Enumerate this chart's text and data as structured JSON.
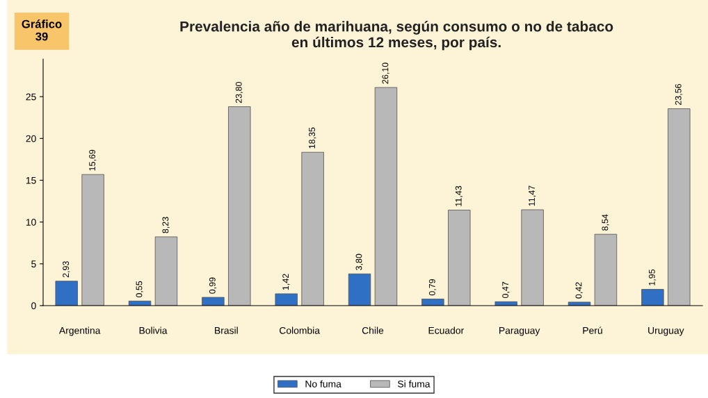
{
  "chart_data": {
    "type": "bar",
    "title": "Prevalencia año de marihuana, según consumo o no de tabaco\nen últimos 12 meses, por país.",
    "annotations": [
      "Gráfico\n39"
    ],
    "categories": [
      "Argentina",
      "Bolivia",
      "Brasil",
      "Colombia",
      "Chile",
      "Ecuador",
      "Paraguay",
      "Perú",
      "Uruguay"
    ],
    "series": [
      {
        "name": "No fuma",
        "color": "#2f6fc4",
        "values": [
          2.93,
          0.55,
          0.99,
          1.42,
          3.8,
          0.79,
          0.47,
          0.42,
          1.95
        ],
        "value_labels": [
          "2,93",
          "0,55",
          "0,99",
          "1,42",
          "3,80",
          "0,79",
          "0,47",
          "0,42",
          "1,95"
        ]
      },
      {
        "name": "Si fuma",
        "color": "#b8b8b8",
        "values": [
          15.69,
          8.23,
          23.8,
          18.35,
          26.1,
          11.43,
          11.47,
          8.54,
          23.56
        ],
        "value_labels": [
          "15,69",
          "8,23",
          "23,80",
          "18,35",
          "26,10",
          "11,43",
          "11,47",
          "8,54",
          "23,56"
        ]
      }
    ],
    "ylim": [
      0,
      29.5
    ],
    "yticks": [
      0,
      5,
      10,
      15,
      20,
      25
    ],
    "grid": false,
    "legend": "bottom"
  }
}
